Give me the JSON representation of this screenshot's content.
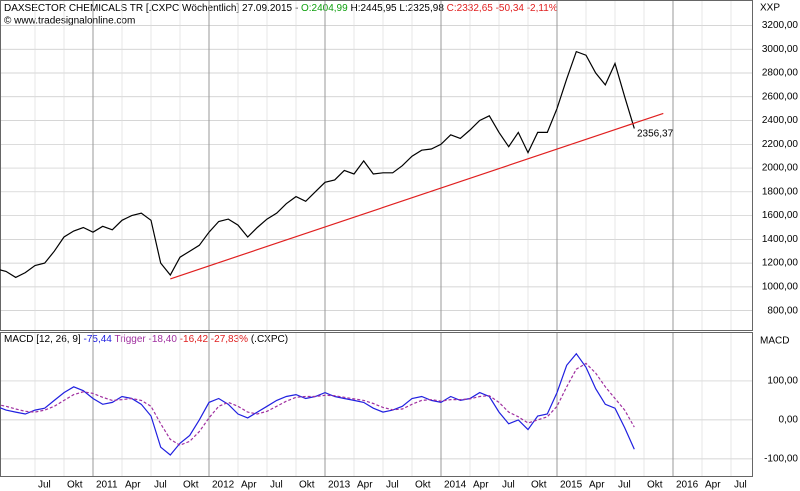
{
  "chart_data": [
    {
      "type": "line",
      "title": "DAXSECTOR CHEMICALS TR [.CXPC Wöchentlich] 27.09.2015 -",
      "open": "O:2404,99",
      "high_low": "H:2445,95 L:2325,98",
      "close": "C:2332,65 -50,34 -2,11%",
      "source": "© www.tradesignalonline.com",
      "axis_title": "XXP",
      "ylim": [
        637,
        3406
      ],
      "yticks": [
        {
          "value": 800,
          "label": "800,00"
        },
        {
          "value": 1000,
          "label": "1000,00"
        },
        {
          "value": 1200,
          "label": "1200,00"
        },
        {
          "value": 1400,
          "label": "1400,00"
        },
        {
          "value": 1600,
          "label": "1600,00"
        },
        {
          "value": 1800,
          "label": "1800,00"
        },
        {
          "value": 2000,
          "label": "2000,00"
        },
        {
          "value": 2200,
          "label": "2200,00"
        },
        {
          "value": 2400,
          "label": "2400,00"
        },
        {
          "value": 2600,
          "label": "2600,00"
        },
        {
          "value": 2800,
          "label": "2800,00"
        },
        {
          "value": 3000,
          "label": "3000,00"
        },
        {
          "value": 3200,
          "label": "3200,00"
        }
      ],
      "x": [
        "2010-03",
        "2010-04",
        "2010-05",
        "2010-06",
        "2010-07",
        "2010-08",
        "2010-09",
        "2010-10",
        "2010-11",
        "2010-12",
        "2011-01",
        "2011-02",
        "2011-03",
        "2011-04",
        "2011-05",
        "2011-06",
        "2011-07",
        "2011-08",
        "2011-09",
        "2011-10",
        "2011-11",
        "2011-12",
        "2012-01",
        "2012-02",
        "2012-03",
        "2012-04",
        "2012-05",
        "2012-06",
        "2012-07",
        "2012-08",
        "2012-09",
        "2012-10",
        "2012-11",
        "2012-12",
        "2013-01",
        "2013-02",
        "2013-03",
        "2013-04",
        "2013-05",
        "2013-06",
        "2013-07",
        "2013-08",
        "2013-09",
        "2013-10",
        "2013-11",
        "2013-12",
        "2014-01",
        "2014-02",
        "2014-03",
        "2014-04",
        "2014-05",
        "2014-06",
        "2014-07",
        "2014-08",
        "2014-09",
        "2014-10",
        "2014-11",
        "2014-12",
        "2015-01",
        "2015-02",
        "2015-03",
        "2015-04",
        "2015-05",
        "2015-06",
        "2015-07",
        "2015-08",
        "2015-09"
      ],
      "series": [
        {
          "color": "#000000",
          "values": [
            1150,
            1130,
            1080,
            1120,
            1180,
            1200,
            1300,
            1420,
            1470,
            1500,
            1460,
            1510,
            1480,
            1560,
            1600,
            1620,
            1560,
            1200,
            1100,
            1250,
            1300,
            1350,
            1460,
            1550,
            1570,
            1520,
            1420,
            1500,
            1570,
            1620,
            1700,
            1760,
            1720,
            1800,
            1880,
            1900,
            1980,
            1950,
            2060,
            1950,
            1960,
            1960,
            2020,
            2100,
            2150,
            2160,
            2200,
            2280,
            2250,
            2320,
            2400,
            2440,
            2300,
            2180,
            2300,
            2130,
            2300,
            2300,
            2500,
            2750,
            2980,
            2950,
            2800,
            2700,
            2880,
            2600,
            2332.65
          ]
        }
      ],
      "trendline": {
        "color": "#e02020",
        "x": [
          "2011-09",
          "2015-12"
        ],
        "values": [
          1067,
          2460
        ],
        "label": "2356,37"
      }
    },
    {
      "type": "line",
      "title": "MACD [12, 26, 9]",
      "macd_value": "-75,44",
      "trigger_text": "Trigger -18,40",
      "diff_text": "-16,42 -27,83%",
      "symbol": "(.CXPC)",
      "axis_title": "MACD",
      "ylim": [
        -144,
        223
      ],
      "yticks": [
        {
          "value": 100,
          "label": "100,00"
        },
        {
          "value": 0,
          "label": "0,00"
        },
        {
          "value": -100,
          "label": "-100,00"
        }
      ],
      "xticks": [
        {
          "value": "2010-07",
          "label": "Jul"
        },
        {
          "value": "2010-10",
          "label": "Okt"
        },
        {
          "value": "2011-01",
          "label": "2011"
        },
        {
          "value": "2011-04",
          "label": "Apr"
        },
        {
          "value": "2011-07",
          "label": "Jul"
        },
        {
          "value": "2011-10",
          "label": "Okt"
        },
        {
          "value": "2012-01",
          "label": "2012"
        },
        {
          "value": "2012-04",
          "label": "Apr"
        },
        {
          "value": "2012-07",
          "label": "Jul"
        },
        {
          "value": "2012-10",
          "label": "Okt"
        },
        {
          "value": "2013-01",
          "label": "2013"
        },
        {
          "value": "2013-04",
          "label": "Apr"
        },
        {
          "value": "2013-07",
          "label": "Jul"
        },
        {
          "value": "2013-10",
          "label": "Okt"
        },
        {
          "value": "2014-01",
          "label": "2014"
        },
        {
          "value": "2014-04",
          "label": "Apr"
        },
        {
          "value": "2014-07",
          "label": "Jul"
        },
        {
          "value": "2014-10",
          "label": "Okt"
        },
        {
          "value": "2015-01",
          "label": "2015"
        },
        {
          "value": "2015-04",
          "label": "Apr"
        },
        {
          "value": "2015-07",
          "label": "Jul"
        },
        {
          "value": "2015-10",
          "label": "Okt"
        },
        {
          "value": "2016-01",
          "label": "2016"
        },
        {
          "value": "2016-04",
          "label": "Apr"
        },
        {
          "value": "2016-07",
          "label": "Jul"
        }
      ],
      "x": [
        "2010-03",
        "2010-04",
        "2010-05",
        "2010-06",
        "2010-07",
        "2010-08",
        "2010-09",
        "2010-10",
        "2010-11",
        "2010-12",
        "2011-01",
        "2011-02",
        "2011-03",
        "2011-04",
        "2011-05",
        "2011-06",
        "2011-07",
        "2011-08",
        "2011-09",
        "2011-10",
        "2011-11",
        "2011-12",
        "2012-01",
        "2012-02",
        "2012-03",
        "2012-04",
        "2012-05",
        "2012-06",
        "2012-07",
        "2012-08",
        "2012-09",
        "2012-10",
        "2012-11",
        "2012-12",
        "2013-01",
        "2013-02",
        "2013-03",
        "2013-04",
        "2013-05",
        "2013-06",
        "2013-07",
        "2013-08",
        "2013-09",
        "2013-10",
        "2013-11",
        "2013-12",
        "2014-01",
        "2014-02",
        "2014-03",
        "2014-04",
        "2014-05",
        "2014-06",
        "2014-07",
        "2014-08",
        "2014-09",
        "2014-10",
        "2014-11",
        "2014-12",
        "2015-01",
        "2015-02",
        "2015-03",
        "2015-04",
        "2015-05",
        "2015-06",
        "2015-07",
        "2015-08",
        "2015-09"
      ],
      "series": [
        {
          "color": "#2020e0",
          "values": [
            35,
            25,
            20,
            15,
            25,
            30,
            50,
            70,
            85,
            75,
            55,
            40,
            45,
            60,
            55,
            40,
            10,
            -70,
            -90,
            -60,
            -40,
            0,
            45,
            55,
            40,
            15,
            5,
            20,
            35,
            50,
            60,
            65,
            55,
            60,
            70,
            60,
            55,
            50,
            45,
            30,
            20,
            25,
            35,
            55,
            60,
            50,
            45,
            60,
            50,
            55,
            70,
            60,
            20,
            -10,
            0,
            -25,
            10,
            15,
            70,
            140,
            170,
            135,
            80,
            40,
            30,
            -20,
            -75.44
          ]
        },
        {
          "color": "#a030a0",
          "dashed": true,
          "values": [
            40,
            35,
            28,
            22,
            20,
            25,
            35,
            50,
            65,
            72,
            68,
            58,
            50,
            52,
            55,
            50,
            35,
            -10,
            -50,
            -65,
            -55,
            -30,
            5,
            35,
            45,
            35,
            20,
            15,
            22,
            35,
            48,
            58,
            60,
            60,
            63,
            62,
            58,
            54,
            50,
            42,
            32,
            26,
            28,
            40,
            50,
            52,
            48,
            52,
            52,
            54,
            60,
            62,
            45,
            20,
            8,
            -8,
            0,
            8,
            35,
            85,
            130,
            145,
            120,
            85,
            55,
            25,
            -18.4
          ]
        }
      ]
    }
  ]
}
